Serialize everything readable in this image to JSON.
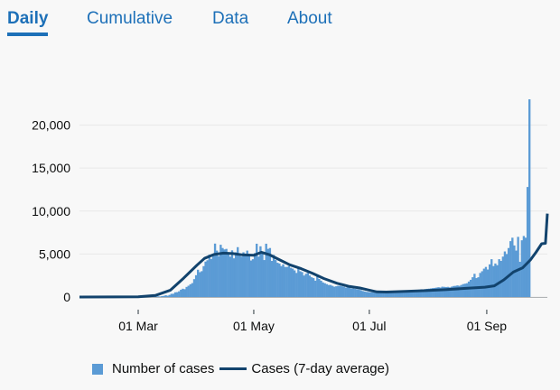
{
  "tabs": [
    {
      "label": "Daily",
      "active": true
    },
    {
      "label": "Cumulative",
      "active": false
    },
    {
      "label": "Data",
      "active": false
    },
    {
      "label": "About",
      "active": false
    }
  ],
  "colors": {
    "accent": "#1d70b8",
    "bars": "#5b9bd5",
    "line": "#12436d",
    "grid": "#e8e8e8",
    "text": "#0b0c0c"
  },
  "chart_data": {
    "type": "bar",
    "title": "",
    "xlabel": "",
    "ylabel": "",
    "ylim": [
      0,
      23000
    ],
    "y_ticks": [
      0,
      5000,
      10000,
      15000,
      20000
    ],
    "y_tick_labels": [
      "0",
      "5,000",
      "10,000",
      "15,000",
      "20,000"
    ],
    "x_range": [
      "2020-01-30",
      "2020-10-03"
    ],
    "x_ticks": [
      "2020-03-01",
      "2020-05-01",
      "2020-07-01",
      "2020-09-01"
    ],
    "x_tick_labels": [
      "01 Mar",
      "01 May",
      "01 Jul",
      "01 Sep"
    ],
    "grid": true,
    "legend_position": "bottom",
    "series": [
      {
        "name": "Number of cases",
        "kind": "bar",
        "x_start": "2020-01-30",
        "interval_days": 1,
        "values": [
          2,
          0,
          0,
          0,
          0,
          0,
          0,
          0,
          2,
          1,
          0,
          0,
          1,
          0,
          0,
          0,
          0,
          0,
          0,
          0,
          0,
          4,
          0,
          0,
          0,
          4,
          1,
          2,
          3,
          1,
          10,
          14,
          10,
          12,
          19,
          14,
          29,
          47,
          47,
          59,
          55,
          82,
          60,
          104,
          137,
          205,
          149,
          240,
          370,
          376,
          548,
          565,
          662,
          849,
          964,
          907,
          1171,
          1310,
          1480,
          1618,
          2080,
          2537,
          3173,
          2888,
          3005,
          3590,
          4124,
          4280,
          4930,
          4434,
          5000,
          6214,
          5400,
          4756,
          6080,
          5700,
          5534,
          5600,
          5160,
          4700,
          5430,
          4500,
          5200,
          5800,
          4800,
          4700,
          5200,
          4900,
          5400,
          4800,
          4250,
          4400,
          5100,
          6200,
          4700,
          5900,
          5300,
          4300,
          6200,
          5600,
          5700,
          4200,
          4900,
          4300,
          3985,
          3900,
          3600,
          3800,
          3500,
          3500,
          3600,
          3400,
          3300,
          3100,
          2800,
          3300,
          3000,
          2900,
          2500,
          2700,
          2800,
          2500,
          2300,
          2200,
          1900,
          2400,
          2100,
          1900,
          1700,
          1600,
          1500,
          1400,
          1400,
          1300,
          1200,
          1250,
          1300,
          1300,
          1250,
          1200,
          1100,
          1150,
          1100,
          1000,
          1000,
          950,
          900,
          880,
          800,
          700,
          650,
          600,
          580,
          550,
          550,
          520,
          540,
          600,
          560,
          600,
          580,
          600,
          620,
          650,
          640,
          620,
          650,
          670,
          680,
          700,
          720,
          700,
          730,
          720,
          760,
          780,
          740,
          800,
          820,
          850,
          900,
          880,
          920,
          950,
          970,
          1000,
          1040,
          1060,
          1100,
          1140,
          1100,
          1200,
          1180,
          1160,
          1180,
          1120,
          1210,
          1280,
          1300,
          1350,
          1300,
          1400,
          1500,
          1550,
          1600,
          1800,
          2000,
          2300,
          2700,
          2200,
          2300,
          2800,
          3000,
          3300,
          3500,
          3200,
          3800,
          4400,
          3600,
          3900,
          3700,
          4400,
          4200,
          4700,
          5300,
          5000,
          5700,
          6500,
          6900,
          6000,
          5400,
          7000,
          4100,
          6600,
          7100,
          6900,
          12800,
          23000
        ]
      },
      {
        "name": "Cases (7-day average)",
        "kind": "line",
        "points": [
          [
            "2020-01-30",
            0
          ],
          [
            "2020-03-01",
            20
          ],
          [
            "2020-03-10",
            180
          ],
          [
            "2020-03-18",
            800
          ],
          [
            "2020-03-25",
            2200
          ],
          [
            "2020-04-01",
            3700
          ],
          [
            "2020-04-05",
            4500
          ],
          [
            "2020-04-10",
            4950
          ],
          [
            "2020-04-15",
            5100
          ],
          [
            "2020-04-20",
            5050
          ],
          [
            "2020-04-25",
            4900
          ],
          [
            "2020-05-01",
            4850
          ],
          [
            "2020-05-05",
            5200
          ],
          [
            "2020-05-09",
            4950
          ],
          [
            "2020-05-14",
            4400
          ],
          [
            "2020-05-20",
            3750
          ],
          [
            "2020-05-26",
            3300
          ],
          [
            "2020-06-01",
            2750
          ],
          [
            "2020-06-07",
            2150
          ],
          [
            "2020-06-14",
            1600
          ],
          [
            "2020-06-20",
            1250
          ],
          [
            "2020-06-26",
            1050
          ],
          [
            "2020-07-01",
            800
          ],
          [
            "2020-07-05",
            600
          ],
          [
            "2020-07-10",
            580
          ],
          [
            "2020-07-20",
            650
          ],
          [
            "2020-07-31",
            750
          ],
          [
            "2020-08-10",
            850
          ],
          [
            "2020-08-20",
            1000
          ],
          [
            "2020-08-31",
            1150
          ],
          [
            "2020-09-05",
            1300
          ],
          [
            "2020-09-10",
            2000
          ],
          [
            "2020-09-15",
            2900
          ],
          [
            "2020-09-20",
            3400
          ],
          [
            "2020-09-24",
            4300
          ],
          [
            "2020-09-27",
            5200
          ],
          [
            "2020-09-30",
            6200
          ],
          [
            "2020-10-02",
            6250
          ],
          [
            "2020-10-03",
            9700
          ]
        ]
      }
    ]
  },
  "legend": {
    "bars_label": "Number of cases",
    "line_label": "Cases (7-day average)"
  }
}
